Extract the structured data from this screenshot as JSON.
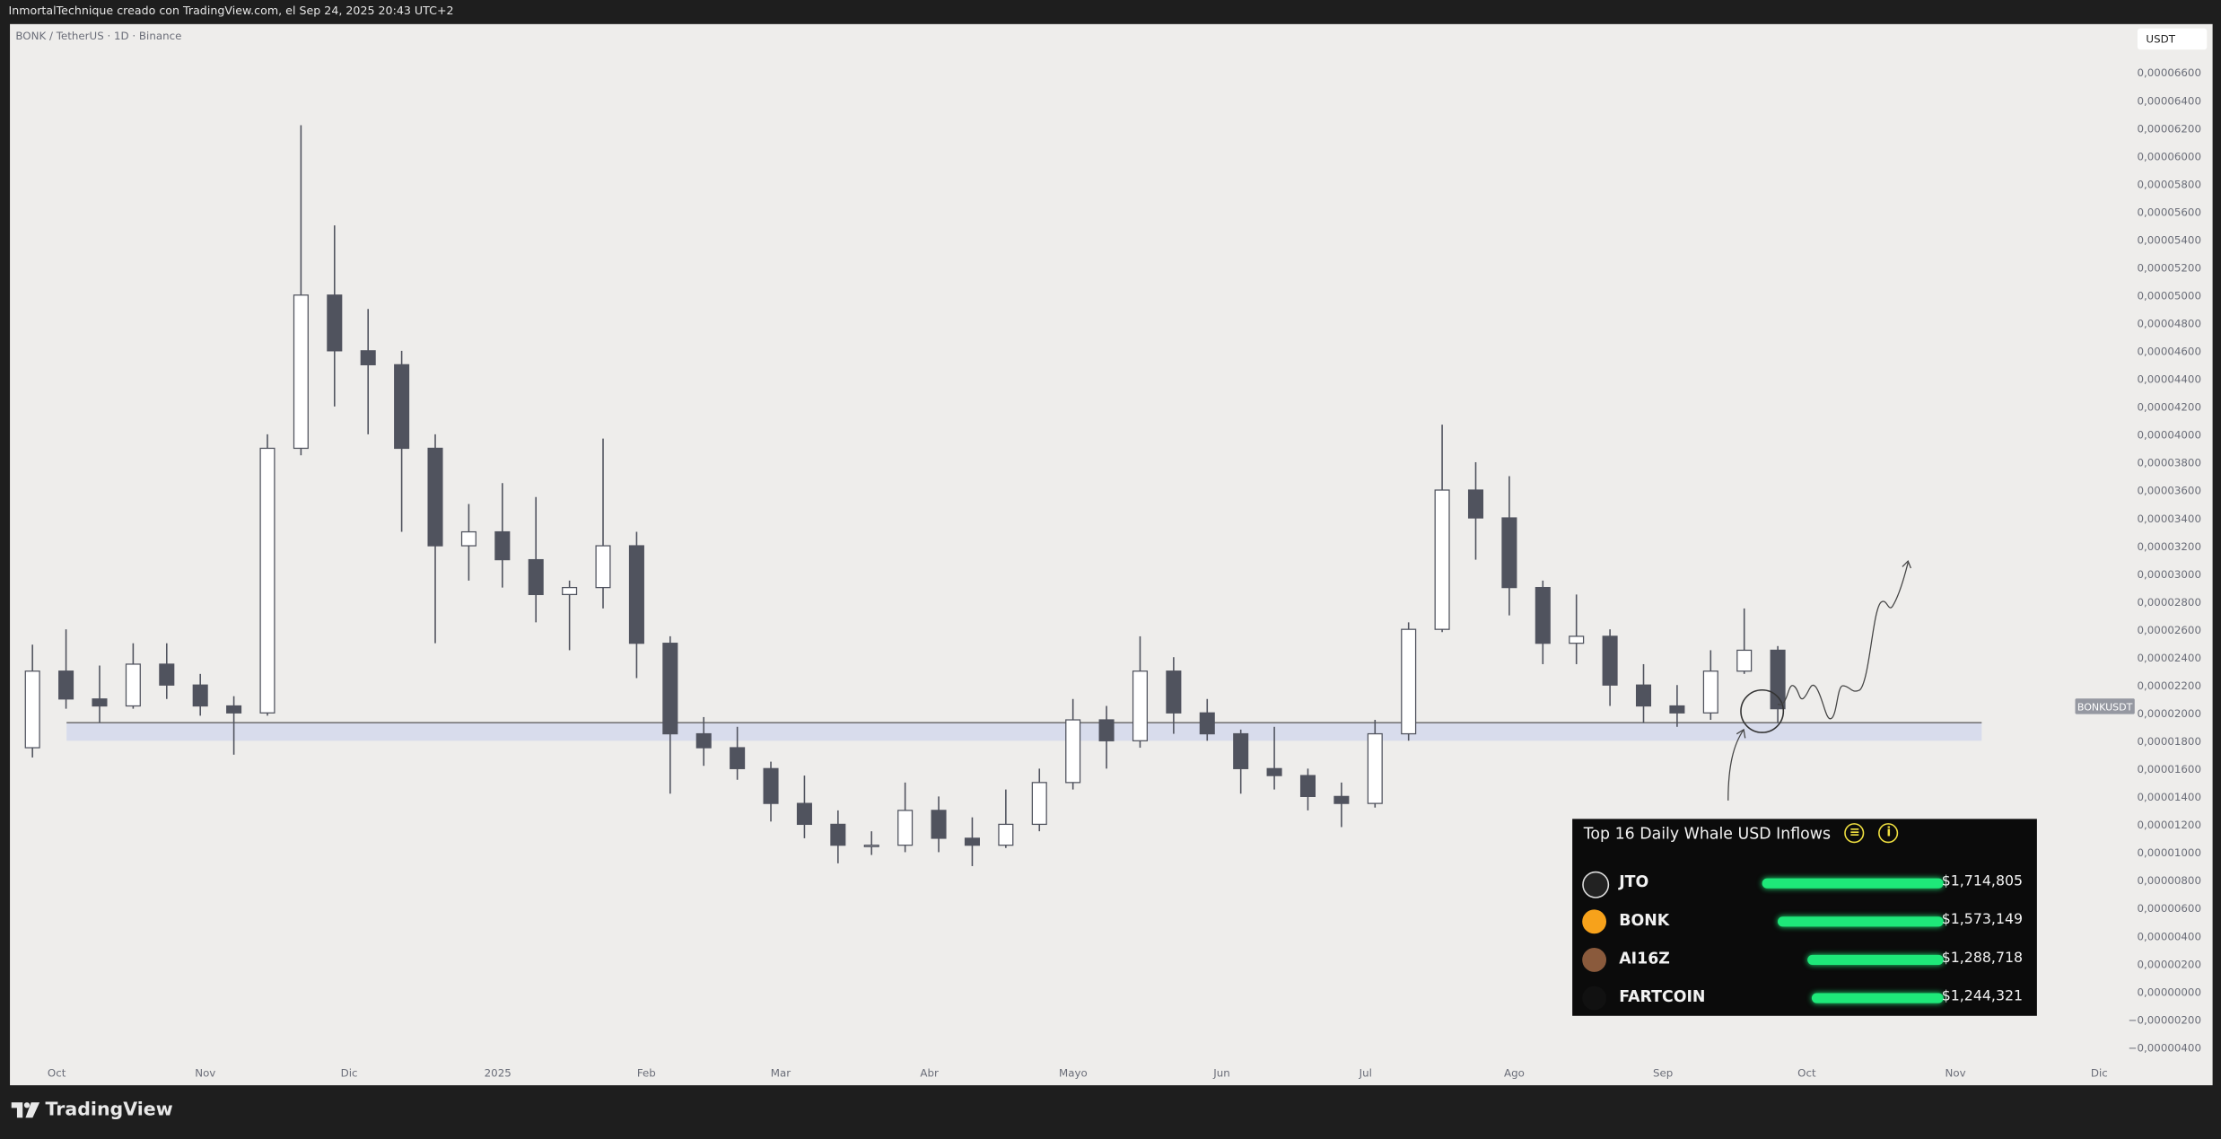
{
  "header": {
    "title": "InmortalTechnique creado con TradingView.com, el Sep 24, 2025 20:43 UTC+2"
  },
  "symbol": {
    "label": "BONK / TetherUS · 1D · Binance",
    "ticker_badge": "BONKUSDT",
    "currency": "USDT"
  },
  "footer": {
    "brand": "TradingView"
  },
  "colors": {
    "background": "#eeedeb",
    "candle": "#50535e",
    "level_zone": "#d8dcec",
    "panel_bar": "#1ee879",
    "panel_icon": "#f0e040"
  },
  "chart_data": {
    "type": "candlestick",
    "note_scale": "prices in USDT",
    "ylim": [
      -4e-06,
      6.6e-05
    ],
    "y_ticks": [
      "0,00006600",
      "0,00006400",
      "0,00006200",
      "0,00006000",
      "0,00005800",
      "0,00005600",
      "0,00005400",
      "0,00005200",
      "0,00005000",
      "0,00004800",
      "0,00004600",
      "0,00004400",
      "0,00004200",
      "0,00004000",
      "0,00003800",
      "0,00003600",
      "0,00003400",
      "0,00003200",
      "0,00003000",
      "0,00002800",
      "0,00002600",
      "0,00002400",
      "0,00002200",
      "0,00002000",
      "0,00001800",
      "0,00001600",
      "0,00001400",
      "0,00001200",
      "0,00001000",
      "0,00000800",
      "0,00000600",
      "0,00000400",
      "0,00000200",
      "0,00000000",
      "−0,00000200",
      "−0,00000400"
    ],
    "x_ticks": [
      {
        "label": "Oct",
        "date": "2024-10-01"
      },
      {
        "label": "Nov",
        "date": "2024-11-01"
      },
      {
        "label": "Dic",
        "date": "2024-12-01"
      },
      {
        "label": "2025",
        "date": "2025-01-01"
      },
      {
        "label": "Feb",
        "date": "2025-02-01"
      },
      {
        "label": "Mar",
        "date": "2025-03-01"
      },
      {
        "label": "Abr",
        "date": "2025-04-01"
      },
      {
        "label": "Mayo",
        "date": "2025-05-01"
      },
      {
        "label": "Jun",
        "date": "2025-06-01"
      },
      {
        "label": "Jul",
        "date": "2025-07-01"
      },
      {
        "label": "Ago",
        "date": "2025-08-01"
      },
      {
        "label": "Sep",
        "date": "2025-09-01"
      },
      {
        "label": "Oct",
        "date": "2025-10-01"
      },
      {
        "label": "Nov",
        "date": "2025-11-01"
      },
      {
        "label": "Dic",
        "date": "2025-12-01"
      }
    ],
    "price_unit": "1e-5 USDT",
    "candles": [
      [
        "2024-09-23",
        1.75,
        2.49,
        1.68,
        2.3
      ],
      [
        "2024-09-30",
        2.3,
        2.6,
        2.03,
        2.1
      ],
      [
        "2024-10-07",
        2.1,
        2.34,
        1.93,
        2.05
      ],
      [
        "2024-10-14",
        2.05,
        2.5,
        2.03,
        2.35
      ],
      [
        "2024-10-21",
        2.35,
        2.5,
        2.1,
        2.2
      ],
      [
        "2024-10-28",
        2.2,
        2.28,
        1.98,
        2.05
      ],
      [
        "2024-11-04",
        2.05,
        2.12,
        1.7,
        2.0
      ],
      [
        "2024-11-11",
        2.0,
        4.0,
        1.98,
        3.9
      ],
      [
        "2024-11-18",
        3.9,
        6.22,
        3.85,
        5.0
      ],
      [
        "2024-11-25",
        5.0,
        5.5,
        4.2,
        4.6
      ],
      [
        "2024-12-02",
        4.6,
        4.9,
        4.0,
        4.5
      ],
      [
        "2024-12-09",
        4.5,
        4.6,
        3.3,
        3.9
      ],
      [
        "2024-12-16",
        3.9,
        4.0,
        2.5,
        3.2
      ],
      [
        "2024-12-23",
        3.2,
        3.5,
        2.95,
        3.3
      ],
      [
        "2024-12-30",
        3.3,
        3.65,
        2.9,
        3.1
      ],
      [
        "2025-01-06",
        3.1,
        3.55,
        2.65,
        2.85
      ],
      [
        "2025-01-13",
        2.85,
        2.95,
        2.45,
        2.9
      ],
      [
        "2025-01-20",
        2.9,
        3.97,
        2.75,
        3.2
      ],
      [
        "2025-01-27",
        3.2,
        3.3,
        2.25,
        2.5
      ],
      [
        "2025-02-03",
        2.5,
        2.55,
        1.42,
        1.85
      ],
      [
        "2025-02-10",
        1.85,
        1.97,
        1.62,
        1.75
      ],
      [
        "2025-02-17",
        1.75,
        1.9,
        1.52,
        1.6
      ],
      [
        "2025-02-24",
        1.6,
        1.65,
        1.22,
        1.35
      ],
      [
        "2025-03-03",
        1.35,
        1.55,
        1.1,
        1.2
      ],
      [
        "2025-03-10",
        1.2,
        1.3,
        0.92,
        1.05
      ],
      [
        "2025-03-17",
        1.05,
        1.15,
        0.98,
        1.05
      ],
      [
        "2025-03-24",
        1.05,
        1.5,
        1.0,
        1.3
      ],
      [
        "2025-03-31",
        1.3,
        1.4,
        1.0,
        1.1
      ],
      [
        "2025-04-07",
        1.1,
        1.25,
        0.9,
        1.05
      ],
      [
        "2025-04-14",
        1.05,
        1.45,
        1.03,
        1.2
      ],
      [
        "2025-04-21",
        1.2,
        1.6,
        1.15,
        1.5
      ],
      [
        "2025-04-28",
        1.5,
        2.1,
        1.45,
        1.95
      ],
      [
        "2025-05-05",
        1.95,
        2.05,
        1.6,
        1.8
      ],
      [
        "2025-05-12",
        1.8,
        2.55,
        1.75,
        2.3
      ],
      [
        "2025-05-19",
        2.3,
        2.4,
        1.85,
        2.0
      ],
      [
        "2025-05-26",
        2.0,
        2.1,
        1.8,
        1.85
      ],
      [
        "2025-06-02",
        1.85,
        1.88,
        1.42,
        1.6
      ],
      [
        "2025-06-09",
        1.6,
        1.9,
        1.45,
        1.55
      ],
      [
        "2025-06-16",
        1.55,
        1.6,
        1.3,
        1.4
      ],
      [
        "2025-06-23",
        1.4,
        1.5,
        1.18,
        1.35
      ],
      [
        "2025-06-30",
        1.35,
        1.95,
        1.32,
        1.85
      ],
      [
        "2025-07-07",
        1.85,
        2.65,
        1.8,
        2.6
      ],
      [
        "2025-07-14",
        2.6,
        4.07,
        2.58,
        3.6
      ],
      [
        "2025-07-21",
        3.6,
        3.8,
        3.1,
        3.4
      ],
      [
        "2025-07-28",
        3.4,
        3.7,
        2.7,
        2.9
      ],
      [
        "2025-08-04",
        2.9,
        2.95,
        2.35,
        2.5
      ],
      [
        "2025-08-11",
        2.5,
        2.85,
        2.35,
        2.55
      ],
      [
        "2025-08-18",
        2.55,
        2.6,
        2.05,
        2.2
      ],
      [
        "2025-08-25",
        2.2,
        2.35,
        1.93,
        2.05
      ],
      [
        "2025-09-01",
        2.05,
        2.2,
        1.9,
        2.0
      ],
      [
        "2025-09-08",
        2.0,
        2.45,
        1.95,
        2.3
      ],
      [
        "2025-09-15",
        2.3,
        2.75,
        2.28,
        2.45
      ],
      [
        "2025-09-22",
        2.45,
        2.48,
        1.93,
        2.03
      ]
    ],
    "support_level": 1.93,
    "support_zone": [
      1.8,
      1.93
    ]
  },
  "whale_panel": {
    "title": "Top 16 Daily Whale USD Inflows",
    "filter_icon": "filter-icon",
    "info_icon": "info-icon",
    "items": [
      {
        "name": "JTO",
        "value": "$1,714,805",
        "amount": 1714805,
        "color": "#222"
      },
      {
        "name": "BONK",
        "value": "$1,573,149",
        "amount": 1573149,
        "color": "#f7a21b"
      },
      {
        "name": "AI16Z",
        "value": "$1,288,718",
        "amount": 1288718,
        "color": "#8a5a3c"
      },
      {
        "name": "FARTCOIN",
        "value": "$1,244,321",
        "amount": 1244321,
        "color": "#111"
      }
    ]
  }
}
